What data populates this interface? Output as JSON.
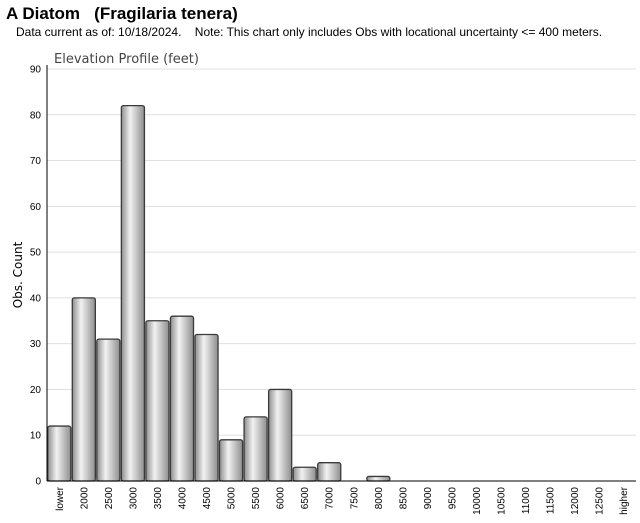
{
  "header": {
    "title": "A Diatom   (Fragilaria tenera)",
    "subtitle": "Data current as of: 10/18/2024.    Note: This chart only includes Obs with locational uncertainty <= 400 meters."
  },
  "chart_data": {
    "type": "bar",
    "title": "Elevation Profile (feet)",
    "xlabel": "",
    "ylabel": "Obs. Count",
    "ylim": [
      0,
      90
    ],
    "yticks": [
      0,
      10,
      20,
      30,
      40,
      50,
      60,
      70,
      80,
      90
    ],
    "grid": true,
    "legend": "none",
    "categories": [
      "lower",
      "2000",
      "2500",
      "3000",
      "3500",
      "4000",
      "4500",
      "5000",
      "5500",
      "6000",
      "6500",
      "7000",
      "7500",
      "8000",
      "8500",
      "9000",
      "9500",
      "10000",
      "10500",
      "11000",
      "11500",
      "12000",
      "12500",
      "higher"
    ],
    "values": [
      12,
      40,
      31,
      82,
      35,
      36,
      32,
      9,
      14,
      20,
      3,
      4,
      0,
      1,
      0,
      0,
      0,
      0,
      0,
      0,
      0,
      0,
      0,
      0
    ],
    "colors": {
      "bar_light": "#f2f2f2",
      "bar_dark": "#8e8e8e",
      "bar_stroke": "#3a3a3a",
      "grid": "#e0e0e0",
      "axis": "#000000"
    }
  }
}
